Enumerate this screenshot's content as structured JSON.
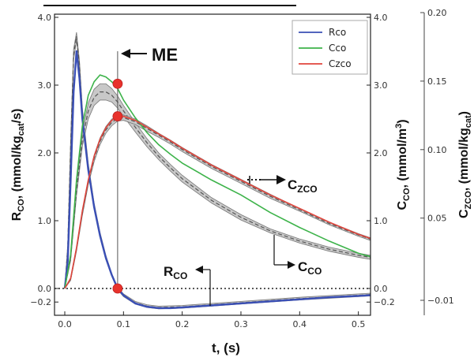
{
  "header_fragment": "",
  "chart_data": {
    "type": "line",
    "x_label": "t, (s)",
    "xlim": [
      -0.02,
      0.52
    ],
    "x_ticks": [
      "0.0",
      "0.1",
      "0.2",
      "0.3",
      "0.4",
      "0.5"
    ],
    "left_axis": {
      "label_main": "R",
      "label_sub": "CO",
      "label_rest": ", (mmol/kg",
      "label_sub2": "cat",
      "label_end": "/s)",
      "ylim": [
        -0.3,
        4.1
      ],
      "ticks": [
        "4.0",
        "3.0",
        "2.0",
        "1.0",
        "0.0",
        "−0.2"
      ],
      "tick_values": [
        4.0,
        3.0,
        2.0,
        1.0,
        0.0,
        -0.2
      ]
    },
    "middle_axis": {
      "label_main": "C",
      "label_sub": "CO",
      "label_rest": ", (mmol/m",
      "label_sup": "3",
      "label_end": ")",
      "ticks": [
        "4.0",
        "3.0",
        "2.0",
        "1.0",
        "0.0",
        "−0.2"
      ],
      "tick_values": [
        4.0,
        3.0,
        2.0,
        1.0,
        0.0,
        -0.2
      ]
    },
    "right_axis": {
      "label_main": "C",
      "label_sub": "ZCO",
      "label_rest": ", (mmol/kg",
      "label_sub2": "cat",
      "label_end": ")",
      "ticks": [
        "0.20",
        "0.15",
        "0.10",
        "0.05",
        "−0.01"
      ],
      "tick_values": [
        0.2,
        0.15,
        0.1,
        0.05,
        -0.01
      ]
    },
    "legend": {
      "position": "top-right",
      "items": [
        {
          "label": "Rco",
          "color": "#3a4fb5"
        },
        {
          "label": "Cco",
          "color": "#3db34a"
        },
        {
          "label": "Czco",
          "color": "#e0453c"
        }
      ]
    },
    "series": [
      {
        "name": "Rco",
        "color": "#3a4fb5",
        "x": [
          0.0,
          0.005,
          0.01,
          0.015,
          0.02,
          0.025,
          0.03,
          0.04,
          0.05,
          0.06,
          0.07,
          0.08,
          0.09,
          0.1,
          0.12,
          0.14,
          0.16,
          0.18,
          0.2,
          0.25,
          0.3,
          0.35,
          0.4,
          0.45,
          0.5,
          0.52
        ],
        "y": [
          0.0,
          0.4,
          1.6,
          2.9,
          3.5,
          3.1,
          2.5,
          1.75,
          1.2,
          0.78,
          0.45,
          0.2,
          0.0,
          -0.1,
          -0.22,
          -0.27,
          -0.29,
          -0.29,
          -0.28,
          -0.25,
          -0.22,
          -0.19,
          -0.16,
          -0.13,
          -0.11,
          -0.1
        ]
      },
      {
        "name": "Cco",
        "color": "#3db34a",
        "x": [
          0.0,
          0.01,
          0.02,
          0.03,
          0.04,
          0.05,
          0.06,
          0.07,
          0.08,
          0.09,
          0.1,
          0.12,
          0.14,
          0.16,
          0.18,
          0.2,
          0.25,
          0.3,
          0.35,
          0.4,
          0.45,
          0.5,
          0.52
        ],
        "y": [
          0.0,
          0.5,
          1.6,
          2.4,
          2.85,
          3.05,
          3.15,
          3.12,
          3.05,
          2.95,
          2.78,
          2.52,
          2.3,
          2.12,
          1.98,
          1.85,
          1.6,
          1.38,
          1.12,
          0.9,
          0.7,
          0.52,
          0.47
        ]
      },
      {
        "name": "Czco",
        "color": "#e0453c",
        "x": [
          0.0,
          0.01,
          0.02,
          0.03,
          0.04,
          0.05,
          0.06,
          0.07,
          0.08,
          0.09,
          0.1,
          0.12,
          0.14,
          0.16,
          0.18,
          0.2,
          0.25,
          0.3,
          0.35,
          0.4,
          0.45,
          0.5,
          0.52
        ],
        "y": [
          0.0,
          0.15,
          0.6,
          1.15,
          1.6,
          1.95,
          2.2,
          2.37,
          2.48,
          2.54,
          2.54,
          2.48,
          2.38,
          2.28,
          2.18,
          2.07,
          1.82,
          1.6,
          1.38,
          1.18,
          0.98,
          0.8,
          0.74
        ]
      }
    ],
    "model_bands": [
      {
        "name": "Rco model",
        "x": [
          0.0,
          0.005,
          0.01,
          0.015,
          0.02,
          0.025,
          0.03,
          0.04,
          0.05,
          0.06,
          0.07,
          0.08,
          0.09,
          0.1,
          0.12,
          0.14,
          0.16,
          0.2,
          0.3,
          0.4,
          0.5,
          0.52
        ],
        "mid": [
          0.0,
          0.6,
          2.1,
          3.45,
          3.72,
          3.3,
          2.6,
          1.8,
          1.22,
          0.8,
          0.46,
          0.2,
          0.0,
          -0.1,
          -0.21,
          -0.26,
          -0.28,
          -0.27,
          -0.21,
          -0.15,
          -0.1,
          -0.09
        ],
        "half_width": [
          0.0,
          0.05,
          0.1,
          0.08,
          0.06,
          0.06,
          0.06,
          0.05,
          0.04,
          0.03,
          0.03,
          0.02,
          0.02,
          0.02,
          0.02,
          0.02,
          0.02,
          0.02,
          0.02,
          0.02,
          0.02,
          0.02
        ]
      },
      {
        "name": "Cco model",
        "x": [
          0.0,
          0.01,
          0.02,
          0.03,
          0.04,
          0.05,
          0.06,
          0.07,
          0.08,
          0.09,
          0.1,
          0.12,
          0.14,
          0.16,
          0.18,
          0.2,
          0.25,
          0.3,
          0.35,
          0.4,
          0.45,
          0.5,
          0.52
        ],
        "mid": [
          0.0,
          0.45,
          1.45,
          2.2,
          2.62,
          2.82,
          2.9,
          2.9,
          2.85,
          2.75,
          2.62,
          2.38,
          2.15,
          1.95,
          1.78,
          1.62,
          1.3,
          1.05,
          0.85,
          0.7,
          0.58,
          0.49,
          0.46
        ],
        "half_width": [
          0.0,
          0.04,
          0.08,
          0.1,
          0.12,
          0.12,
          0.12,
          0.12,
          0.1,
          0.09,
          0.08,
          0.07,
          0.06,
          0.05,
          0.05,
          0.05,
          0.04,
          0.04,
          0.03,
          0.03,
          0.03,
          0.03,
          0.03
        ]
      },
      {
        "name": "Czco model",
        "x": [
          0.0,
          0.01,
          0.02,
          0.03,
          0.04,
          0.05,
          0.06,
          0.07,
          0.08,
          0.09,
          0.1,
          0.12,
          0.14,
          0.16,
          0.18,
          0.2,
          0.25,
          0.3,
          0.35,
          0.4,
          0.45,
          0.5,
          0.52
        ],
        "mid": [
          0.0,
          0.14,
          0.58,
          1.12,
          1.57,
          1.92,
          2.17,
          2.34,
          2.45,
          2.51,
          2.52,
          2.46,
          2.36,
          2.26,
          2.16,
          2.05,
          1.8,
          1.58,
          1.36,
          1.16,
          0.96,
          0.79,
          0.73
        ],
        "half_width": [
          0.0,
          0.02,
          0.03,
          0.04,
          0.04,
          0.05,
          0.05,
          0.05,
          0.05,
          0.04,
          0.04,
          0.04,
          0.04,
          0.03,
          0.03,
          0.03,
          0.03,
          0.03,
          0.03,
          0.02,
          0.02,
          0.02,
          0.02
        ]
      }
    ],
    "marker_line_x": 0.09,
    "markers": [
      {
        "x": 0.09,
        "y": 3.02,
        "color": "#e8322c"
      },
      {
        "x": 0.09,
        "y": 2.54,
        "color": "#e8322c"
      },
      {
        "x": 0.09,
        "y": 0.0,
        "color": "#e8322c"
      }
    ],
    "annotations": {
      "me": "ME",
      "czco_main": "C",
      "czco_sub": "ZCO",
      "cco_main": "C",
      "cco_sub": "CO",
      "rco_main": "R",
      "rco_sub": "CO"
    },
    "zero_line_style": "dotted",
    "grid": false
  }
}
